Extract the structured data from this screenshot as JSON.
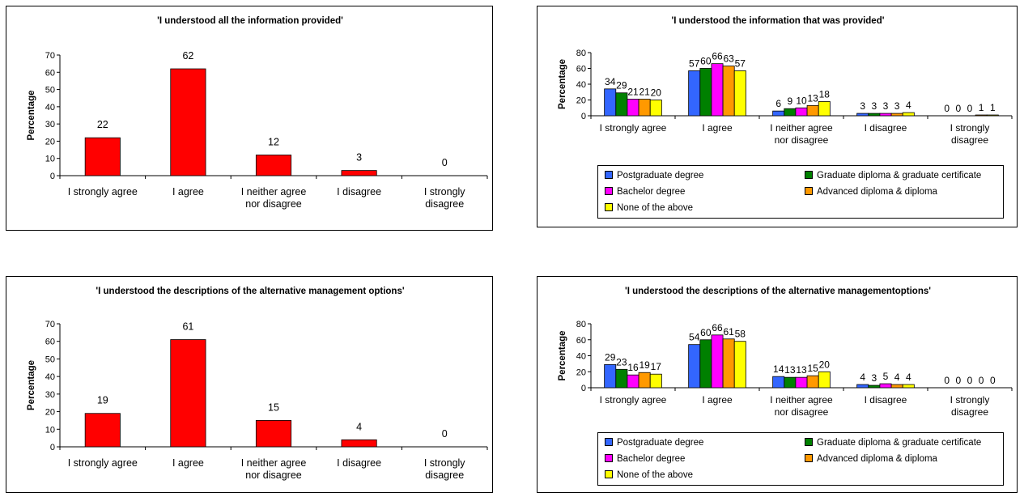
{
  "chart_data": [
    {
      "type": "bar",
      "title": "'I understood all the information provided'",
      "ylabel": "Percentage",
      "ylim": [
        0,
        70
      ],
      "yticks": [
        0,
        10,
        20,
        30,
        40,
        50,
        60,
        70
      ],
      "categories": [
        [
          "I strongly agree"
        ],
        [
          "I agree"
        ],
        [
          "I neither agree",
          "nor disagree"
        ],
        [
          "I disagree"
        ],
        [
          "I strongly",
          "disagree"
        ]
      ],
      "series": [
        {
          "values": [
            22,
            62,
            12,
            3,
            0
          ],
          "color": "#ff0000"
        }
      ]
    },
    {
      "type": "bar",
      "title": "'I understood the information that was provided'",
      "ylabel": "Percentage",
      "ylim": [
        0,
        80
      ],
      "yticks": [
        0,
        20,
        40,
        60,
        80
      ],
      "categories": [
        [
          "I strongly agree"
        ],
        [
          "I agree"
        ],
        [
          "I neither agree",
          "nor disagree"
        ],
        [
          "I disagree"
        ],
        [
          "I strongly",
          "disagree"
        ]
      ],
      "series": [
        {
          "name": "Postgraduate degree",
          "color": "#3366ff",
          "values": [
            34,
            57,
            6,
            3,
            0
          ]
        },
        {
          "name": "Graduate diploma & graduate certificate",
          "color": "#008000",
          "values": [
            29,
            60,
            9,
            3,
            0
          ]
        },
        {
          "name": "Bachelor degree",
          "color": "#ff00ff",
          "values": [
            21,
            66,
            10,
            3,
            0
          ]
        },
        {
          "name": "Advanced diploma & diploma",
          "color": "#ff9900",
          "values": [
            21,
            63,
            13,
            3,
            1
          ]
        },
        {
          "name": "None of the above",
          "color": "#ffff00",
          "values": [
            20,
            57,
            18,
            4,
            1
          ]
        }
      ]
    },
    {
      "type": "bar",
      "title": "'I understood the descriptions of the alternative management options'",
      "ylabel": "Percentage",
      "ylim": [
        0,
        70
      ],
      "yticks": [
        0,
        10,
        20,
        30,
        40,
        50,
        60,
        70
      ],
      "categories": [
        [
          "I strongly agree"
        ],
        [
          "I agree"
        ],
        [
          "I neither agree",
          "nor disagree"
        ],
        [
          "I disagree"
        ],
        [
          "I strongly",
          "disagree"
        ]
      ],
      "series": [
        {
          "values": [
            19,
            61,
            15,
            4,
            0
          ],
          "color": "#ff0000"
        }
      ]
    },
    {
      "type": "bar",
      "title": "'I understood the descriptions of the alternative managementoptions'",
      "ylabel": "Percentage",
      "ylim": [
        0,
        80
      ],
      "yticks": [
        0,
        20,
        40,
        60,
        80
      ],
      "categories": [
        [
          "I strongly agree"
        ],
        [
          "I agree"
        ],
        [
          "I neither agree",
          "nor disagree"
        ],
        [
          "I disagree"
        ],
        [
          "I strongly",
          "disagree"
        ]
      ],
      "series": [
        {
          "name": "Postgraduate degree",
          "color": "#3366ff",
          "values": [
            29,
            54,
            14,
            4,
            0
          ]
        },
        {
          "name": "Graduate diploma & graduate certificate",
          "color": "#008000",
          "values": [
            23,
            60,
            13,
            3,
            0
          ]
        },
        {
          "name": "Bachelor degree",
          "color": "#ff00ff",
          "values": [
            16,
            66,
            13,
            5,
            0
          ]
        },
        {
          "name": "Advanced diploma & diploma",
          "color": "#ff9900",
          "values": [
            19,
            61,
            15,
            4,
            0
          ]
        },
        {
          "name": "None of the above",
          "color": "#ffff00",
          "values": [
            17,
            58,
            20,
            4,
            0
          ]
        }
      ]
    }
  ]
}
